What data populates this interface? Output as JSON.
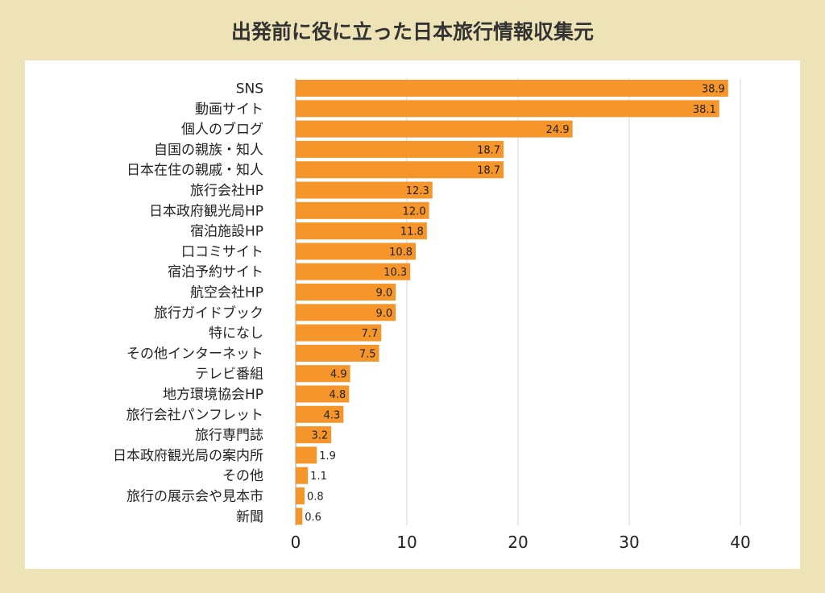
{
  "chart_data": {
    "type": "bar",
    "orientation": "horizontal",
    "title": "出発前に役に立った日本旅行情報収集元",
    "categories": [
      "SNS",
      "動画サイト",
      "個人のブログ",
      "自国の親族・知人",
      "日本在住の親戚・知人",
      "旅行会社HP",
      "日本政府観光局HP",
      "宿泊施設HP",
      "口コミサイト",
      "宿泊予約サイト",
      "航空会社HP",
      "旅行ガイドブック",
      "特になし",
      "その他インターネット",
      "テレビ番組",
      "地方環境協会HP",
      "旅行会社パンフレット",
      "旅行専門誌",
      "日本政府観光局の案内所",
      "その他",
      "旅行の展示会や見本市",
      "新聞"
    ],
    "values": [
      38.9,
      38.1,
      24.9,
      18.7,
      18.7,
      12.3,
      12.0,
      11.8,
      10.8,
      10.3,
      9.0,
      9.0,
      7.7,
      7.5,
      4.9,
      4.8,
      4.3,
      3.2,
      1.9,
      1.1,
      0.8,
      0.6
    ],
    "value_labels": [
      "38.9",
      "38.1",
      "24.9",
      "18.7",
      "18.7",
      "12.3",
      "12.0",
      "11.8",
      "10.8",
      "10.3",
      "9.0",
      "9.0",
      "7.7",
      "7.5",
      "4.9",
      "4.8",
      "4.3",
      "3.2",
      "1.9",
      "1.1",
      "0.8",
      "0.6"
    ],
    "xlim": [
      0,
      40
    ],
    "x_ticks": [
      "0",
      "10",
      "20",
      "30",
      "40"
    ],
    "grid": "vertical",
    "bar_color": "#f5952a",
    "background_color": "#ede3b7"
  }
}
